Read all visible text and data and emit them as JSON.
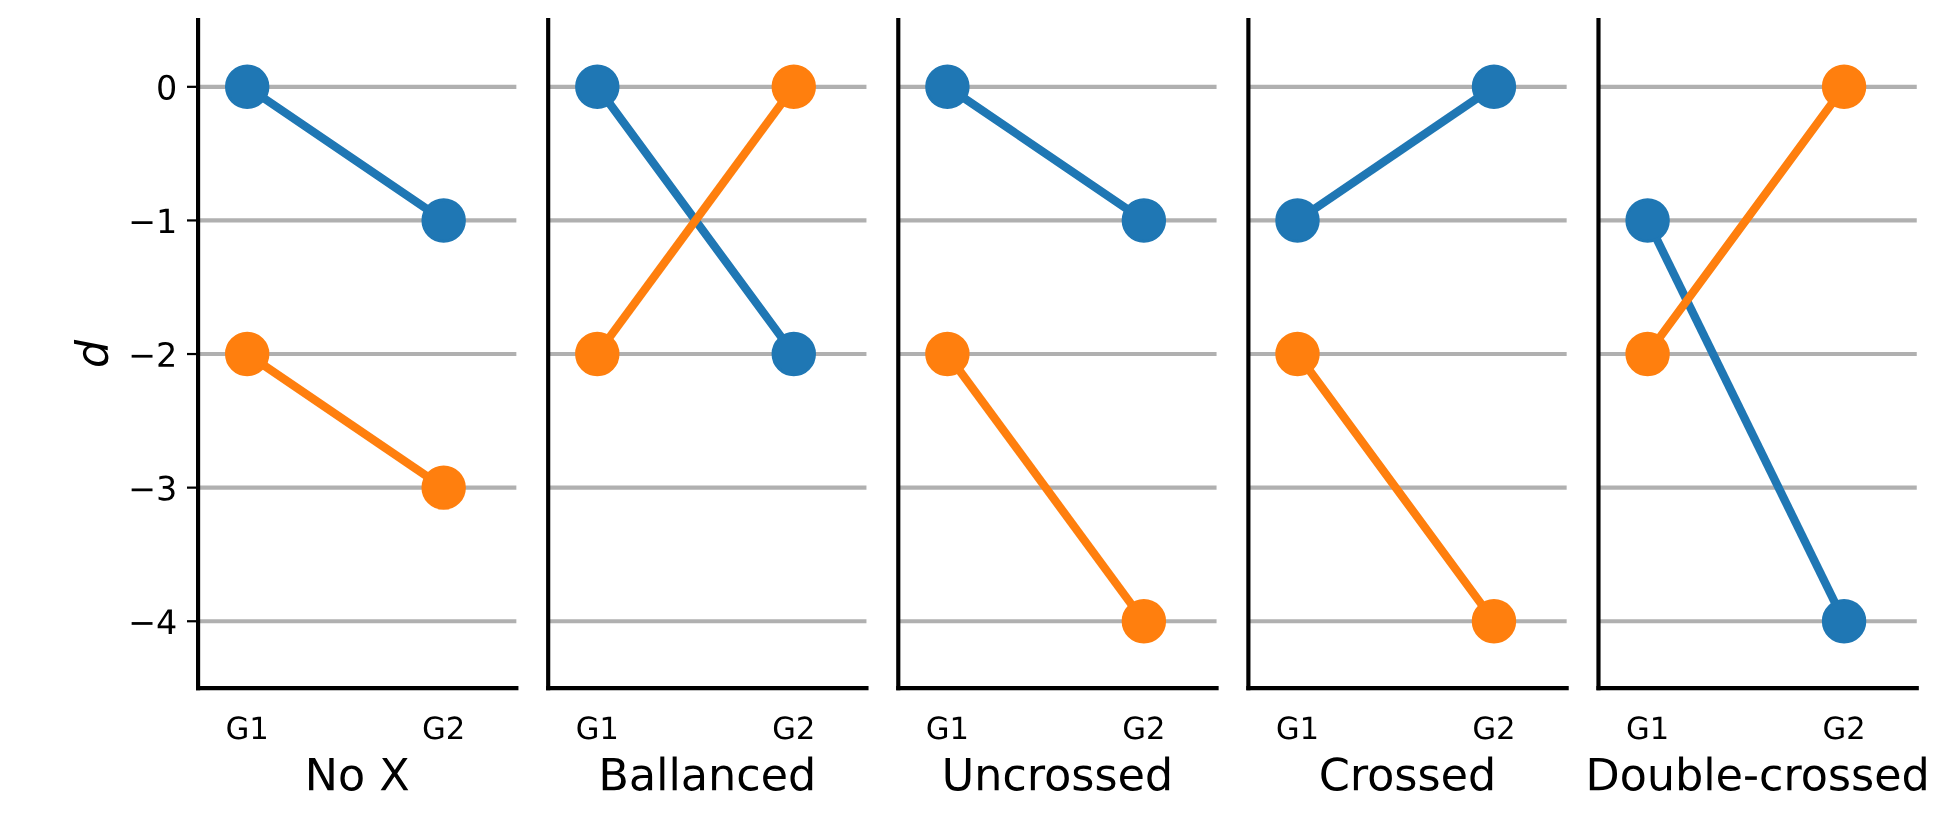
{
  "chart_data": [
    {
      "type": "line",
      "xlabel": "No X",
      "ylabel": "d",
      "categories": [
        "G1",
        "G2"
      ],
      "ylim": [
        -4.5,
        0.5
      ],
      "yticks": [
        {
          "value": 0,
          "label": "0"
        },
        {
          "value": -1,
          "label": "−1"
        },
        {
          "value": -2,
          "label": "−2"
        },
        {
          "value": -3,
          "label": "−3"
        },
        {
          "value": -4,
          "label": "−4"
        }
      ],
      "grid": "y",
      "marker": "circle",
      "series": [
        {
          "color": "#1f77b4",
          "values": [
            0,
            -1
          ]
        },
        {
          "color": "#ff7f0e",
          "values": [
            -2,
            -3
          ]
        }
      ]
    },
    {
      "type": "line",
      "xlabel": "Ballanced",
      "categories": [
        "G1",
        "G2"
      ],
      "ylim": [
        -4.5,
        0.5
      ],
      "yticks": [
        0,
        -1,
        -2,
        -3,
        -4
      ],
      "grid": "y",
      "marker": "circle",
      "tick_labels": "x",
      "series": [
        {
          "color": "#1f77b4",
          "values": [
            0,
            -2
          ]
        },
        {
          "color": "#ff7f0e",
          "values": [
            -2,
            0
          ]
        }
      ]
    },
    {
      "type": "line",
      "xlabel": "Uncrossed",
      "categories": [
        "G1",
        "G2"
      ],
      "ylim": [
        -4.5,
        0.5
      ],
      "yticks": [
        0,
        -1,
        -2,
        -3,
        -4
      ],
      "grid": "y",
      "marker": "circle",
      "tick_labels": "x",
      "series": [
        {
          "color": "#1f77b4",
          "values": [
            0,
            -1
          ]
        },
        {
          "color": "#ff7f0e",
          "values": [
            -2,
            -4
          ]
        }
      ]
    },
    {
      "type": "line",
      "xlabel": "Crossed",
      "categories": [
        "G1",
        "G2"
      ],
      "ylim": [
        -4.5,
        0.5
      ],
      "yticks": [
        0,
        -1,
        -2,
        -3,
        -4
      ],
      "grid": "y",
      "marker": "circle",
      "tick_labels": "x",
      "series": [
        {
          "color": "#1f77b4",
          "values": [
            -1,
            0
          ]
        },
        {
          "color": "#ff7f0e",
          "values": [
            -2,
            -4
          ]
        }
      ]
    },
    {
      "type": "line",
      "xlabel": "Double-crossed",
      "categories": [
        "G1",
        "G2"
      ],
      "ylim": [
        -4.5,
        0.5
      ],
      "yticks": [
        0,
        -1,
        -2,
        -3,
        -4
      ],
      "grid": "y",
      "marker": "circle",
      "tick_labels": "x",
      "series": [
        {
          "color": "#1f77b4",
          "values": [
            -1,
            -4
          ]
        },
        {
          "color": "#ff7f0e",
          "values": [
            -2,
            0
          ]
        }
      ]
    }
  ]
}
